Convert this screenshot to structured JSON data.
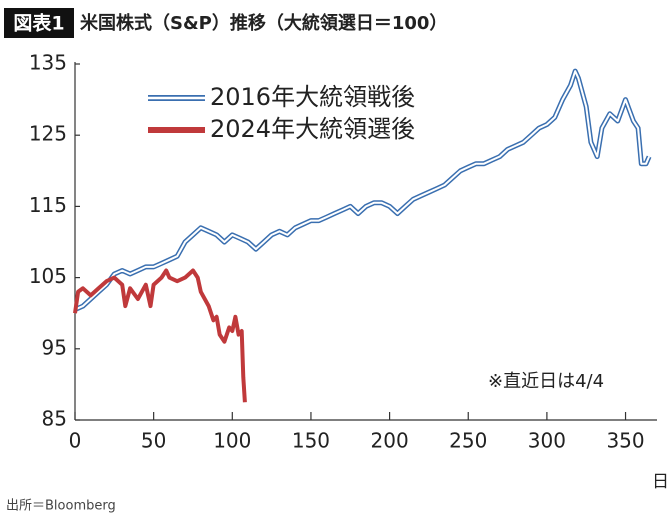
{
  "chart_data": {
    "type": "line",
    "badge": "図表1",
    "title": "米国株式（S&P）推移（大統領選日＝100）",
    "x_label": "日",
    "annotation": "※直近日は4/4",
    "source": "出所＝Bloomberg",
    "xlim": [
      0,
      370
    ],
    "xticks": [
      0,
      50,
      100,
      150,
      200,
      250,
      300,
      350
    ],
    "ylim": [
      85,
      135
    ],
    "yticks": [
      85,
      95,
      105,
      115,
      125,
      135
    ],
    "grid": false,
    "series": [
      {
        "name": "2016年大統領戦後",
        "color": "#3a6fb0",
        "style": "double",
        "x": [
          0,
          5,
          10,
          15,
          20,
          25,
          30,
          35,
          40,
          45,
          50,
          55,
          60,
          65,
          70,
          75,
          80,
          85,
          90,
          95,
          100,
          105,
          110,
          115,
          120,
          125,
          130,
          135,
          140,
          145,
          150,
          155,
          160,
          165,
          170,
          175,
          180,
          185,
          190,
          195,
          200,
          205,
          210,
          215,
          220,
          225,
          230,
          235,
          240,
          245,
          250,
          255,
          260,
          265,
          270,
          275,
          280,
          285,
          290,
          295,
          300,
          305,
          310,
          315,
          318,
          320,
          325,
          328,
          332,
          335,
          340,
          345,
          350,
          355,
          358,
          360,
          363,
          365
        ],
        "values": [
          100.5,
          101,
          102,
          103,
          104,
          105.5,
          106,
          105.5,
          106,
          106.5,
          106.5,
          107,
          107.5,
          108,
          110,
          111,
          112,
          111.5,
          111,
          110,
          111,
          110.5,
          110,
          109,
          110,
          111,
          111.5,
          111,
          112,
          112.5,
          113,
          113,
          113.5,
          114,
          114.5,
          115,
          114,
          115,
          115.5,
          115.5,
          115,
          114,
          115,
          116,
          116.5,
          117,
          117.5,
          118,
          119,
          120,
          120.5,
          121,
          121,
          121.5,
          122,
          123,
          123.5,
          124,
          125,
          126,
          126.5,
          127.5,
          130,
          132,
          134,
          133,
          129,
          124,
          122,
          126,
          128,
          127,
          130,
          127,
          126,
          121,
          121,
          122
        ]
      },
      {
        "name": "2024年大統領選後",
        "color": "#c0393b",
        "style": "solid",
        "x": [
          0,
          2,
          5,
          10,
          15,
          20,
          25,
          30,
          32,
          35,
          40,
          45,
          48,
          50,
          55,
          58,
          60,
          65,
          70,
          75,
          78,
          80,
          85,
          88,
          90,
          92,
          95,
          98,
          100,
          102,
          104,
          106,
          107,
          108
        ],
        "values": [
          100,
          103,
          103.5,
          102.5,
          103.5,
          104.5,
          105,
          104,
          101,
          103.5,
          102,
          104,
          101,
          104,
          105,
          106,
          105,
          104.5,
          105,
          106,
          105,
          103,
          101,
          99,
          99.5,
          97,
          96,
          98,
          97.5,
          99.5,
          97,
          97.5,
          91,
          87.5
        ]
      }
    ]
  }
}
